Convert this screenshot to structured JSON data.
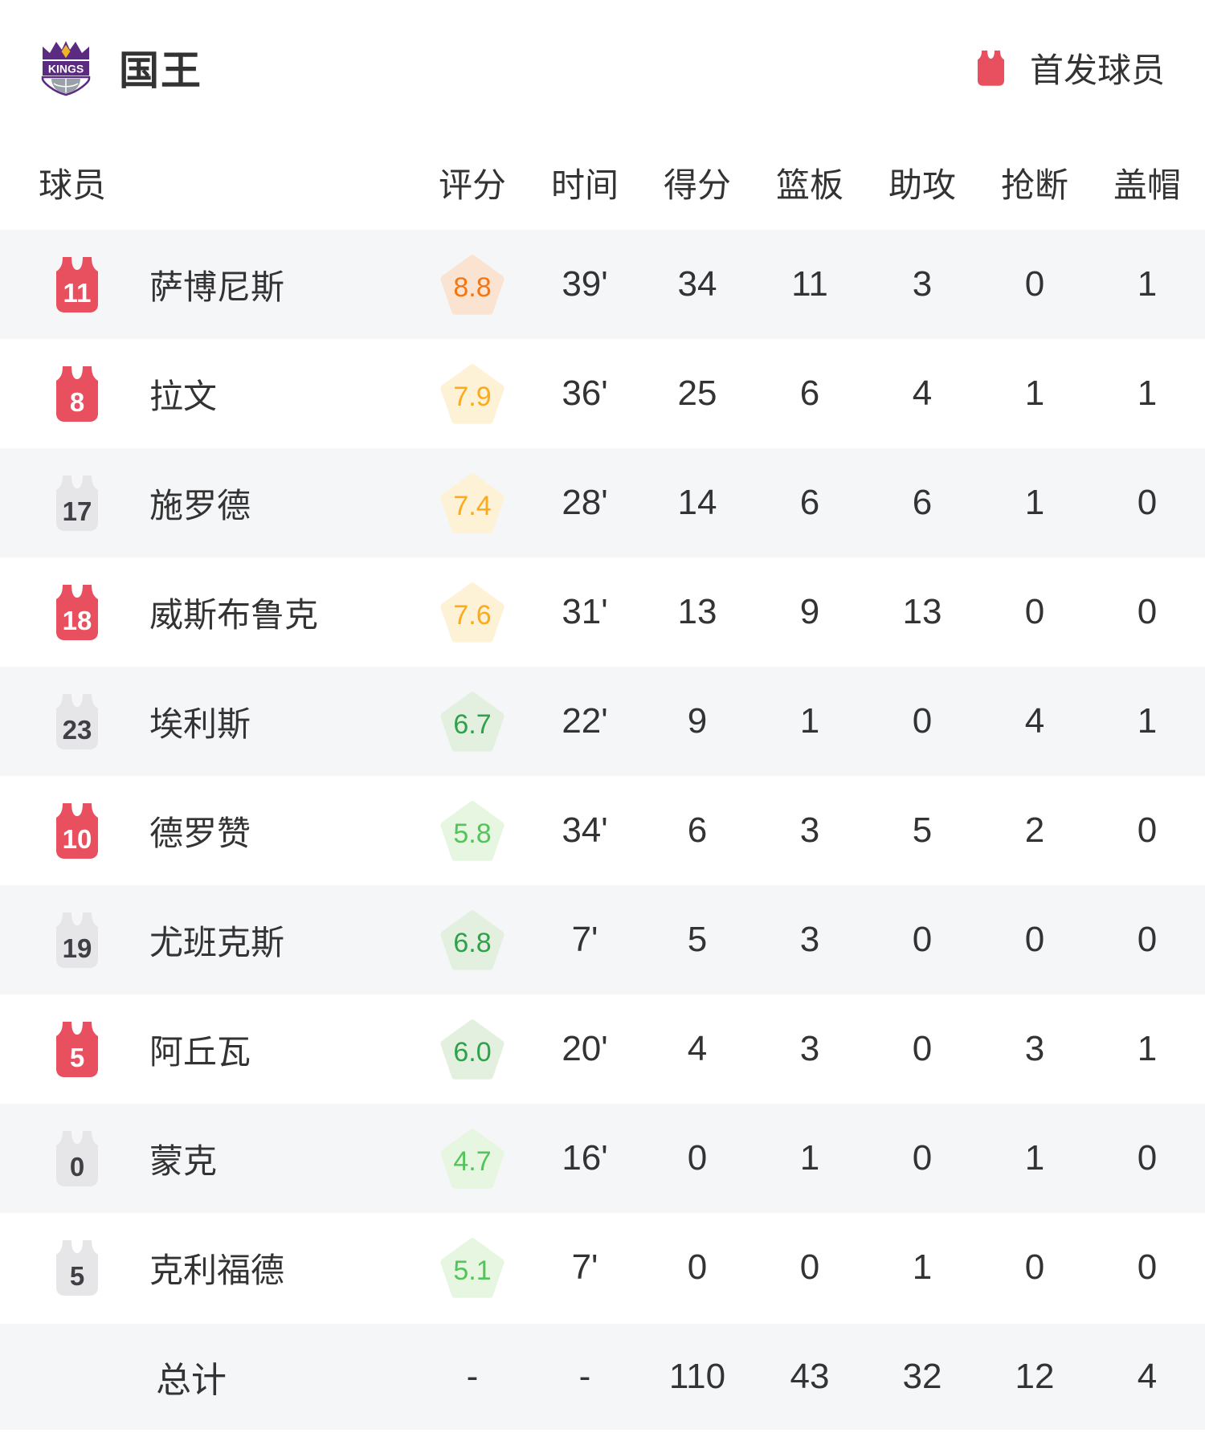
{
  "team_header": {
    "team_name": "国王",
    "legend_label": "首发球员"
  },
  "columns": {
    "player": "球员",
    "stats": [
      "评分",
      "时间",
      "得分",
      "篮板",
      "助攻",
      "抢断",
      "盖帽"
    ]
  },
  "colors": {
    "starter_jersey": "#e8505f",
    "bench_jersey": "#e6e6e8",
    "starter_number": "#ffffff",
    "bench_number": "#3f4045",
    "row_alt_bg": "#f5f6f8",
    "text": "#333333",
    "kings_purple": "#5b2b82",
    "kings_gold": "#f0b429"
  },
  "players": [
    {
      "jersey_number": "11",
      "name": "萨博尼斯",
      "starter": true,
      "rating": {
        "value": "8.8",
        "fg": "#f7740e",
        "bg": "#fae4d1"
      },
      "time": "39'",
      "points": "34",
      "rebounds": "11",
      "assists": "3",
      "steals": "0",
      "blocks": "1"
    },
    {
      "jersey_number": "8",
      "name": "拉文",
      "starter": true,
      "rating": {
        "value": "7.9",
        "fg": "#fbaa1c",
        "bg": "#fdf2d6"
      },
      "time": "36'",
      "points": "25",
      "rebounds": "6",
      "assists": "4",
      "steals": "1",
      "blocks": "1"
    },
    {
      "jersey_number": "17",
      "name": "施罗德",
      "starter": false,
      "rating": {
        "value": "7.4",
        "fg": "#fbaa1c",
        "bg": "#fdf2d6"
      },
      "time": "28'",
      "points": "14",
      "rebounds": "6",
      "assists": "6",
      "steals": "1",
      "blocks": "0"
    },
    {
      "jersey_number": "18",
      "name": "威斯布鲁克",
      "starter": true,
      "rating": {
        "value": "7.6",
        "fg": "#fbaa1c",
        "bg": "#fdf2d6"
      },
      "time": "31'",
      "points": "13",
      "rebounds": "9",
      "assists": "13",
      "steals": "0",
      "blocks": "0"
    },
    {
      "jersey_number": "23",
      "name": "埃利斯",
      "starter": false,
      "rating": {
        "value": "6.7",
        "fg": "#2ea24a",
        "bg": "#e4f0df"
      },
      "time": "22'",
      "points": "9",
      "rebounds": "1",
      "assists": "0",
      "steals": "4",
      "blocks": "1"
    },
    {
      "jersey_number": "10",
      "name": "德罗赞",
      "starter": true,
      "rating": {
        "value": "5.8",
        "fg": "#54c45a",
        "bg": "#e6f6e0"
      },
      "time": "34'",
      "points": "6",
      "rebounds": "3",
      "assists": "5",
      "steals": "2",
      "blocks": "0"
    },
    {
      "jersey_number": "19",
      "name": "尤班克斯",
      "starter": false,
      "rating": {
        "value": "6.8",
        "fg": "#2ea24a",
        "bg": "#e4f0df"
      },
      "time": "7'",
      "points": "5",
      "rebounds": "3",
      "assists": "0",
      "steals": "0",
      "blocks": "0"
    },
    {
      "jersey_number": "5",
      "name": "阿丘瓦",
      "starter": true,
      "rating": {
        "value": "6.0",
        "fg": "#2ea24a",
        "bg": "#e4f0df"
      },
      "time": "20'",
      "points": "4",
      "rebounds": "3",
      "assists": "0",
      "steals": "3",
      "blocks": "1"
    },
    {
      "jersey_number": "0",
      "name": "蒙克",
      "starter": false,
      "rating": {
        "value": "4.7",
        "fg": "#54c45a",
        "bg": "#e6f6e0"
      },
      "time": "16'",
      "points": "0",
      "rebounds": "1",
      "assists": "0",
      "steals": "1",
      "blocks": "0"
    },
    {
      "jersey_number": "5",
      "name": "克利福德",
      "starter": false,
      "rating": {
        "value": "5.1",
        "fg": "#54c45a",
        "bg": "#e6f6e0"
      },
      "time": "7'",
      "points": "0",
      "rebounds": "0",
      "assists": "1",
      "steals": "0",
      "blocks": "0"
    }
  ],
  "total": {
    "label": "总计",
    "rating": "-",
    "time": "-",
    "points": "110",
    "rebounds": "43",
    "assists": "32",
    "steals": "12",
    "blocks": "4"
  }
}
